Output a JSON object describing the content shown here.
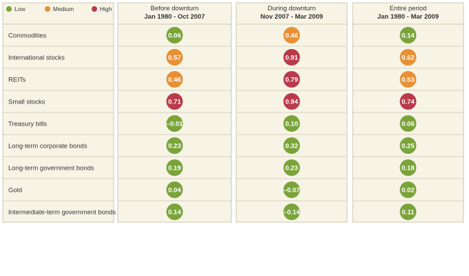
{
  "colors": {
    "low": "#7aa43a",
    "medium": "#e89035",
    "high": "#b93a4b",
    "panel": "#f7f4e6",
    "line": "#ccc7b0",
    "text": "#333333"
  },
  "chart_data": {
    "type": "table",
    "legend": [
      {
        "key": "low",
        "label": "Low"
      },
      {
        "key": "medium",
        "label": "Medium"
      },
      {
        "key": "high",
        "label": "High"
      }
    ],
    "columns": [
      {
        "title": "Before downturn",
        "subtitle": "Jan 1980 - Oct 2007"
      },
      {
        "title": "During downturn",
        "subtitle": "Nov 2007 - Mar 2009"
      },
      {
        "title": "Entire period",
        "subtitle": "Jan 1980 - Mar 2009"
      }
    ],
    "rows": [
      {
        "label": "Commodities",
        "cells": [
          {
            "text": "0.06",
            "level": "low"
          },
          {
            "text": "0.46",
            "level": "medium"
          },
          {
            "text": "0.14",
            "level": "low"
          }
        ]
      },
      {
        "label": "International stocks",
        "cells": [
          {
            "text": "0.57",
            "level": "medium"
          },
          {
            "text": "0.91",
            "level": "high"
          },
          {
            "text": "0.62",
            "level": "medium"
          }
        ]
      },
      {
        "label": "REITs",
        "cells": [
          {
            "text": "0.46",
            "level": "medium"
          },
          {
            "text": "0.79",
            "level": "high"
          },
          {
            "text": "0.53",
            "level": "medium"
          }
        ]
      },
      {
        "label": "Small stocks",
        "cells": [
          {
            "text": "0.71",
            "level": "high"
          },
          {
            "text": "0.94",
            "level": "high"
          },
          {
            "text": "0.74",
            "level": "high"
          }
        ]
      },
      {
        "label": "Treasury bills",
        "cells": [
          {
            "text": "–0.01",
            "level": "low"
          },
          {
            "text": "0.10",
            "level": "low"
          },
          {
            "text": "0.06",
            "level": "low"
          }
        ]
      },
      {
        "label": "Long-term corporate bonds",
        "cells": [
          {
            "text": "0.23",
            "level": "low"
          },
          {
            "text": "0.32",
            "level": "low"
          },
          {
            "text": "0.25",
            "level": "low"
          }
        ]
      },
      {
        "label": "Long-term government bonds",
        "cells": [
          {
            "text": "0.19",
            "level": "low"
          },
          {
            "text": "0.23",
            "level": "low"
          },
          {
            "text": "0.18",
            "level": "low"
          }
        ]
      },
      {
        "label": "Gold",
        "cells": [
          {
            "text": "0.04",
            "level": "low"
          },
          {
            "text": "–0.07",
            "level": "low"
          },
          {
            "text": "0.02",
            "level": "low"
          }
        ]
      },
      {
        "label": "Intermediate-term government bonds",
        "cells": [
          {
            "text": "0.14",
            "level": "low"
          },
          {
            "text": "–0.14",
            "level": "low"
          },
          {
            "text": "0.11",
            "level": "low"
          }
        ]
      }
    ]
  }
}
